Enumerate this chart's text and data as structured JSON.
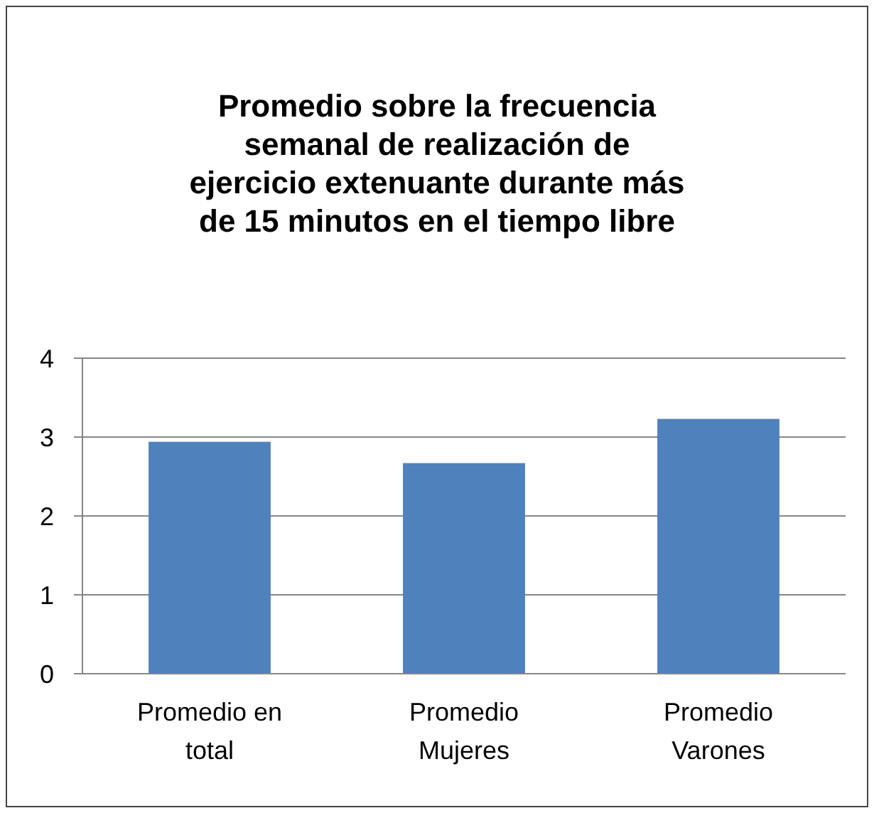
{
  "chart_data": {
    "type": "bar",
    "title": "Promedio sobre la frecuencia semanal de realización de ejercicio extenuante durante más de 15 minutos en el tiempo libre",
    "categories": [
      "Promedio en total",
      "Promedio Mujeres",
      "Promedio Varones"
    ],
    "values": [
      2.94,
      2.67,
      3.23
    ],
    "color": "#4f81bd",
    "ylim": [
      0,
      4
    ],
    "yticks": [
      0,
      1,
      2,
      3,
      4
    ],
    "grid": "y"
  }
}
